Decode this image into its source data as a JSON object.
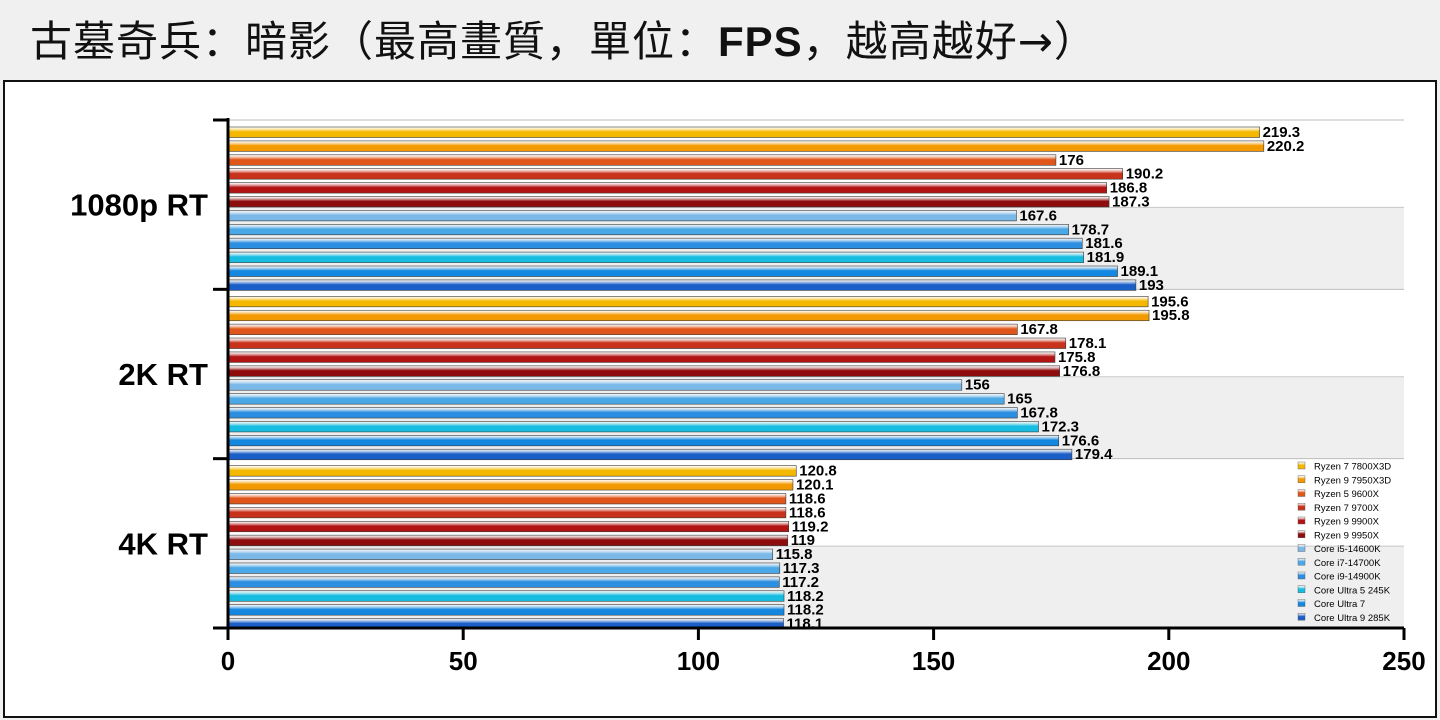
{
  "title": {
    "prefix": "古墓奇兵：暗影（最高畫質，單位：",
    "unit": "FPS",
    "suffix": "，越高越好→）"
  },
  "chart_data": {
    "type": "bar",
    "orientation": "horizontal",
    "categories": [
      "1080p RT",
      "2K RT",
      "4K RT"
    ],
    "xlim": [
      0,
      250
    ],
    "xticks": [
      0,
      50,
      100,
      150,
      200,
      250
    ],
    "legend_position": "right",
    "series": [
      {
        "name": "Ryzen 7 7800X3D",
        "color": "#f5b800",
        "values": [
          219.3,
          195.6,
          120.8
        ]
      },
      {
        "name": "Ryzen 9 7950X3D",
        "color": "#f39a00",
        "values": [
          220.2,
          195.8,
          120.1
        ]
      },
      {
        "name": "Ryzen 5 9600X",
        "color": "#e0561a",
        "values": [
          176,
          167.8,
          118.6
        ]
      },
      {
        "name": "Ryzen 7 9700X",
        "color": "#c8321a",
        "values": [
          190.2,
          178.1,
          118.6
        ]
      },
      {
        "name": "Ryzen 9 9900X",
        "color": "#b21414",
        "values": [
          186.8,
          175.8,
          119.2
        ]
      },
      {
        "name": "Ryzen 9 9950X",
        "color": "#8e0c0c",
        "values": [
          187.3,
          176.8,
          119
        ]
      },
      {
        "name": "Core i5-14600K",
        "color": "#7ab8e8",
        "values": [
          167.6,
          156,
          115.8
        ]
      },
      {
        "name": "Core i7-14700K",
        "color": "#4aa8e6",
        "values": [
          178.7,
          165,
          117.3
        ]
      },
      {
        "name": "Core i9-14900K",
        "color": "#2b8ee0",
        "values": [
          181.6,
          167.8,
          117.2
        ]
      },
      {
        "name": "Core Ultra 5 245K",
        "color": "#16bde0",
        "values": [
          181.9,
          172.3,
          118.2
        ]
      },
      {
        "name": "Core Ultra 7",
        "color": "#1488e0",
        "values": [
          189.1,
          176.6,
          118.2
        ]
      },
      {
        "name": "Core Ultra 9 285K",
        "color": "#1a5ec8",
        "values": [
          193,
          179.4,
          118.1
        ]
      }
    ]
  }
}
